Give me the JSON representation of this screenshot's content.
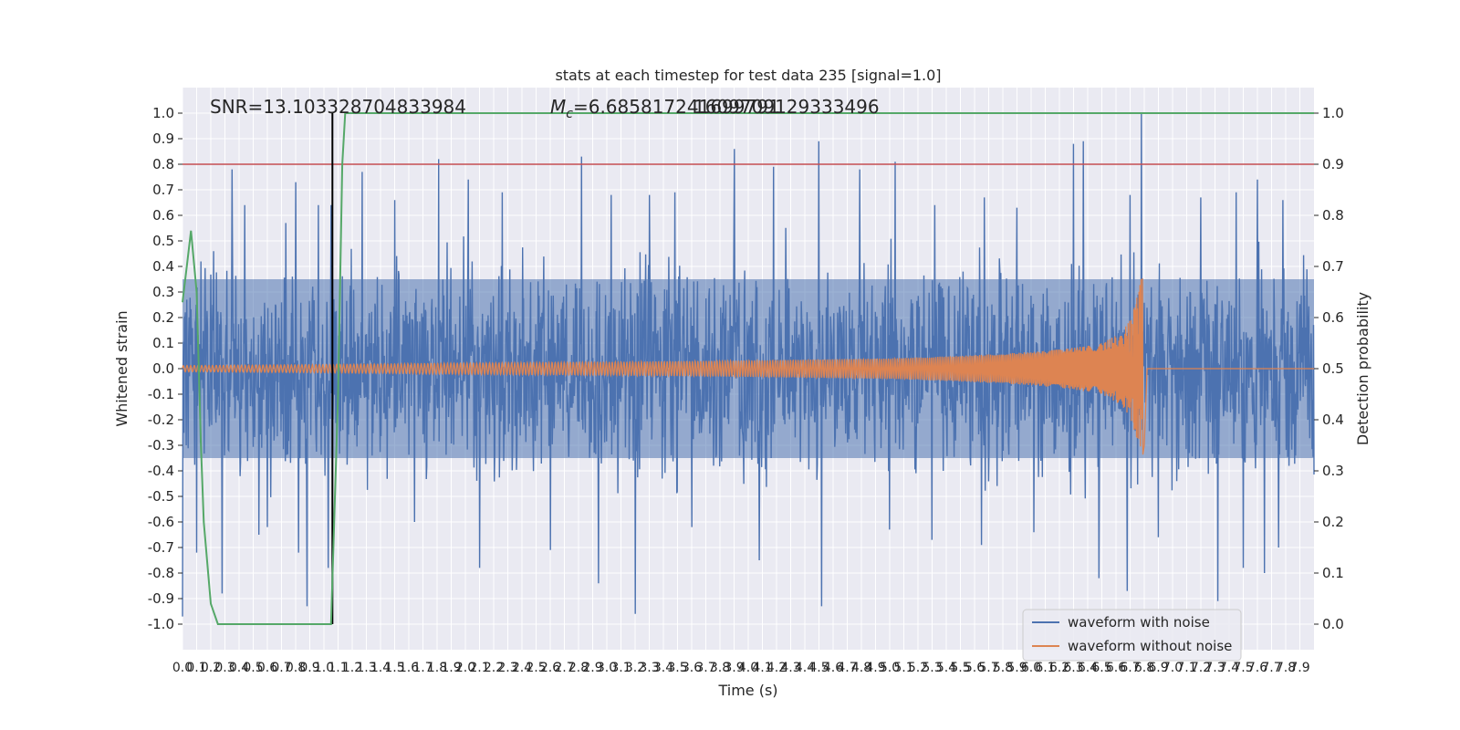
{
  "chart_data": {
    "type": "line",
    "title": "stats at each timestep for test data 235 [signal=1.0]",
    "xlabel": "Time (s)",
    "ylabel": "Whitened strain",
    "y2label": "Detection probability",
    "xlim": [
      0.0,
      8.0
    ],
    "ylim": [
      -1.1,
      1.1
    ],
    "y2lim": [
      -0.05,
      1.05
    ],
    "xticks": [
      0.0,
      0.1,
      0.2,
      0.3,
      0.4,
      0.5,
      0.6,
      0.7,
      0.8,
      0.9,
      1.0,
      1.1,
      1.2,
      1.3,
      1.4,
      1.5,
      1.6,
      1.7,
      1.8,
      1.9,
      2.0,
      2.1,
      2.2,
      2.3,
      2.4,
      2.5,
      2.6,
      2.7,
      2.8,
      2.9,
      3.0,
      3.1,
      3.2,
      3.3,
      3.4,
      3.5,
      3.6,
      3.7,
      3.8,
      3.9,
      4.0,
      4.1,
      4.2,
      4.3,
      4.4,
      4.5,
      4.6,
      4.7,
      4.8,
      4.9,
      5.0,
      5.1,
      5.2,
      5.3,
      5.4,
      5.5,
      5.6,
      5.7,
      5.8,
      5.9,
      6.0,
      6.1,
      6.2,
      6.3,
      6.4,
      6.5,
      6.6,
      6.7,
      6.8,
      6.9,
      7.0,
      7.1,
      7.2,
      7.3,
      7.4,
      7.5,
      7.6,
      7.7,
      7.8,
      7.9
    ],
    "yticks": [
      1.0,
      0.9,
      0.8,
      0.7,
      0.6,
      0.5,
      0.4,
      0.3,
      0.2,
      0.1,
      0.0,
      -0.1,
      -0.2,
      -0.3,
      -0.4,
      -0.5,
      -0.6,
      -0.7,
      -0.8,
      -0.9,
      -1.0
    ],
    "y2ticks": [
      1.0,
      0.9,
      0.8,
      0.7,
      0.6,
      0.5,
      0.4,
      0.3,
      0.2,
      0.1,
      0.0
    ],
    "grid": true,
    "legend_position": "lower-right",
    "annotations": {
      "snr": "SNR=13.103328704833984",
      "mc_symbol": "M",
      "mc_sub": "c",
      "mc_value": "=6.685817241699791",
      "overlap": "1609709129333496"
    },
    "series": [
      {
        "name": "waveform with noise",
        "color": "#4c72b0",
        "axis": "left",
        "noise_band": [
          -0.35,
          0.35
        ],
        "peak_x": [
          0.22,
          0.35,
          0.44,
          0.6,
          0.73,
          0.8,
          0.96,
          1.05,
          1.27,
          1.5,
          1.81,
          2.02,
          2.26,
          2.82,
          3.03,
          3.3,
          3.48,
          3.9,
          4.18,
          4.5,
          4.79,
          5.04,
          5.32,
          5.67,
          5.9,
          6.3,
          6.37,
          6.7,
          6.78,
          7.2,
          7.45,
          7.6,
          7.78
        ],
        "peak_y": [
          0.46,
          0.78,
          0.64,
          0.68,
          0.57,
          0.73,
          0.64,
          0.64,
          0.77,
          0.66,
          0.82,
          0.74,
          0.69,
          0.83,
          0.68,
          0.68,
          0.69,
          0.86,
          0.79,
          0.89,
          0.78,
          0.81,
          0.64,
          0.67,
          0.63,
          0.88,
          0.89,
          0.68,
          1.0,
          0.67,
          0.69,
          0.74,
          0.66
        ],
        "trough_x": [
          0.0,
          0.1,
          0.28,
          0.54,
          0.6,
          0.82,
          0.88,
          1.03,
          1.64,
          2.1,
          2.6,
          2.94,
          3.2,
          3.6,
          4.08,
          4.52,
          5.0,
          5.3,
          5.65,
          6.02,
          6.48,
          6.68,
          6.9,
          7.32,
          7.5,
          7.65,
          7.75
        ],
        "trough_y": [
          -0.97,
          -0.72,
          -0.88,
          -0.65,
          -0.62,
          -0.72,
          -0.93,
          -0.78,
          -0.6,
          -0.78,
          -0.71,
          -0.84,
          -0.96,
          -0.62,
          -0.75,
          -0.93,
          -0.63,
          -0.67,
          -0.69,
          -0.64,
          -0.82,
          -0.87,
          -0.66,
          -0.91,
          -0.78,
          -0.8,
          -0.7
        ]
      },
      {
        "name": "waveform without noise",
        "color": "#dd8452",
        "axis": "left",
        "envelope_x": [
          0.0,
          1.0,
          2.0,
          3.0,
          4.0,
          5.0,
          5.5,
          6.0,
          6.2,
          6.4,
          6.5,
          6.6,
          6.65,
          6.7,
          6.74,
          6.77,
          6.79
        ],
        "envelope_y": [
          0.012,
          0.016,
          0.022,
          0.026,
          0.032,
          0.04,
          0.05,
          0.065,
          0.075,
          0.09,
          0.1,
          0.13,
          0.15,
          0.19,
          0.26,
          0.33,
          0.4
        ],
        "merger_x": 6.79
      },
      {
        "name": "detection probability",
        "color": "#55a868",
        "axis": "right",
        "x": [
          0.0,
          0.03,
          0.06,
          0.1,
          0.13,
          0.15,
          0.2,
          0.25,
          0.3,
          0.5,
          0.7,
          0.9,
          1.0,
          1.05,
          1.1,
          1.13,
          1.15,
          8.0
        ],
        "y": [
          0.63,
          0.7,
          0.77,
          0.65,
          0.35,
          0.2,
          0.04,
          0.0,
          0.0,
          0.0,
          0.0,
          0.0,
          0.0,
          0.0,
          0.45,
          0.9,
          1.0,
          1.0
        ]
      }
    ],
    "reference_lines": {
      "threshold_right_axis": 0.9,
      "threshold_color": "#c44e52",
      "vertical_x": 1.06,
      "vertical_color": "#000000"
    }
  }
}
